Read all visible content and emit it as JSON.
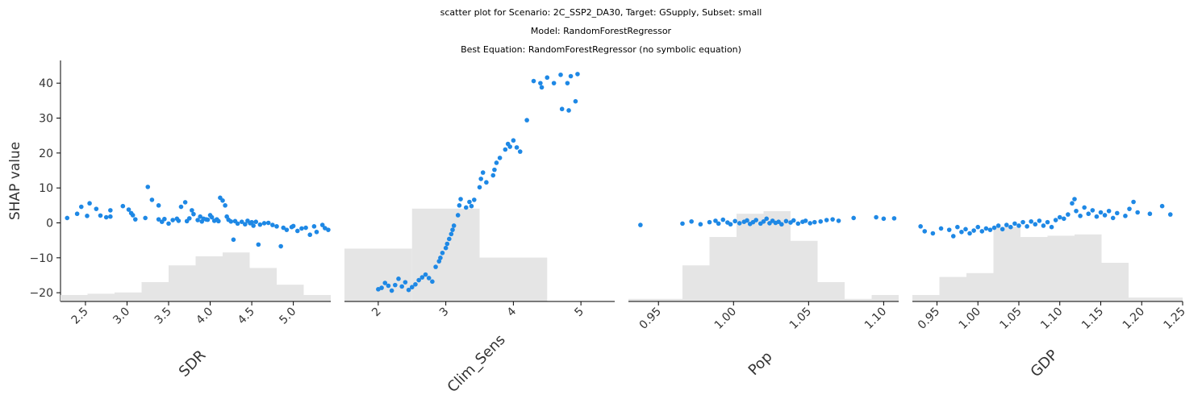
{
  "chart_data": {
    "type": "scatter",
    "title_lines": [
      "scatter plot for Scenario: 2C_SSP2_DA30, Target: GSupply, Subset: small",
      "Model: RandomForestRegressor",
      "Best Equation: RandomForestRegressor (no symbolic equation)"
    ],
    "ylabel": "SHAP value",
    "ylim": [
      -22.5,
      46.5
    ],
    "yticks": [
      -20,
      -10,
      0,
      10,
      20,
      30,
      40
    ],
    "point_color": "#1e88e5",
    "hist_color": "#e5e5e5",
    "panels": [
      {
        "xlabel": "SDR",
        "xlim": [
          2.2,
          5.45
        ],
        "xticks": [
          "2.5",
          "3.0",
          "3.5",
          "4.0",
          "4.5",
          "5.0"
        ],
        "hist": {
          "bins": [
            2.2,
            2.525,
            2.85,
            3.175,
            3.5,
            3.825,
            4.15,
            4.475,
            4.8,
            5.125,
            5.45
          ],
          "heights": [
            0.05,
            0.06,
            0.07,
            0.15,
            0.28,
            0.35,
            0.38,
            0.26,
            0.13,
            0.05
          ]
        },
        "points": [
          [
            2.28,
            1.4
          ],
          [
            2.4,
            2.6
          ],
          [
            2.45,
            4.6
          ],
          [
            2.52,
            2.0
          ],
          [
            2.55,
            5.6
          ],
          [
            2.63,
            4.0
          ],
          [
            2.68,
            2.1
          ],
          [
            2.75,
            1.6
          ],
          [
            2.8,
            3.6
          ],
          [
            2.8,
            1.8
          ],
          [
            2.95,
            4.8
          ],
          [
            3.02,
            3.8
          ],
          [
            3.05,
            2.8
          ],
          [
            3.07,
            2.2
          ],
          [
            3.1,
            1.0
          ],
          [
            3.22,
            1.4
          ],
          [
            3.25,
            10.3
          ],
          [
            3.3,
            6.6
          ],
          [
            3.38,
            5.0
          ],
          [
            3.38,
            1.0
          ],
          [
            3.42,
            0.3
          ],
          [
            3.45,
            1.1
          ],
          [
            3.5,
            -0.2
          ],
          [
            3.55,
            0.8
          ],
          [
            3.6,
            1.2
          ],
          [
            3.62,
            0.6
          ],
          [
            3.65,
            4.6
          ],
          [
            3.7,
            5.9
          ],
          [
            3.72,
            0.5
          ],
          [
            3.75,
            1.3
          ],
          [
            3.78,
            3.6
          ],
          [
            3.8,
            2.5
          ],
          [
            3.85,
            0.8
          ],
          [
            3.88,
            1.8
          ],
          [
            3.9,
            0.4
          ],
          [
            3.92,
            1.2
          ],
          [
            3.95,
            1.0
          ],
          [
            3.97,
            0.9
          ],
          [
            4.0,
            2.2
          ],
          [
            4.02,
            1.6
          ],
          [
            4.05,
            0.6
          ],
          [
            4.08,
            1.0
          ],
          [
            4.1,
            0.5
          ],
          [
            4.12,
            7.2
          ],
          [
            4.15,
            6.4
          ],
          [
            4.18,
            5.0
          ],
          [
            4.2,
            1.8
          ],
          [
            4.22,
            0.9
          ],
          [
            4.25,
            0.4
          ],
          [
            4.28,
            -4.8
          ],
          [
            4.3,
            0.5
          ],
          [
            4.33,
            -0.2
          ],
          [
            4.38,
            0.3
          ],
          [
            4.42,
            -0.4
          ],
          [
            4.45,
            0.6
          ],
          [
            4.48,
            -0.1
          ],
          [
            4.5,
            0.2
          ],
          [
            4.52,
            -0.8
          ],
          [
            4.55,
            0.3
          ],
          [
            4.58,
            -6.2
          ],
          [
            4.6,
            -0.5
          ],
          [
            4.65,
            -0.1
          ],
          [
            4.7,
            0.0
          ],
          [
            4.75,
            -0.6
          ],
          [
            4.8,
            -1.0
          ],
          [
            4.85,
            -6.7
          ],
          [
            4.88,
            -1.4
          ],
          [
            4.92,
            -2.0
          ],
          [
            4.98,
            -1.2
          ],
          [
            5.0,
            -0.9
          ],
          [
            5.05,
            -2.3
          ],
          [
            5.1,
            -1.6
          ],
          [
            5.15,
            -1.4
          ],
          [
            5.2,
            -3.4
          ],
          [
            5.25,
            -1.0
          ],
          [
            5.28,
            -2.6
          ],
          [
            5.35,
            -0.6
          ],
          [
            5.38,
            -1.5
          ],
          [
            5.42,
            -2.0
          ]
        ]
      },
      {
        "xlabel": "Clim_Sens",
        "xlim": [
          1.5,
          5.5
        ],
        "xticks": [
          "2",
          "3",
          "4",
          "5"
        ],
        "hist": {
          "bins": [
            1.5,
            2.5,
            3.5,
            4.5,
            5.5
          ],
          "heights": [
            0.41,
            0.72,
            0.34,
            0.0
          ]
        },
        "points": [
          [
            2.0,
            -19.0
          ],
          [
            2.05,
            -18.6
          ],
          [
            2.1,
            -17.2
          ],
          [
            2.15,
            -18.0
          ],
          [
            2.2,
            -19.4
          ],
          [
            2.25,
            -17.8
          ],
          [
            2.3,
            -16.0
          ],
          [
            2.35,
            -18.2
          ],
          [
            2.4,
            -17.0
          ],
          [
            2.45,
            -19.2
          ],
          [
            2.5,
            -18.4
          ],
          [
            2.55,
            -17.6
          ],
          [
            2.6,
            -16.4
          ],
          [
            2.65,
            -15.6
          ],
          [
            2.7,
            -14.8
          ],
          [
            2.75,
            -15.8
          ],
          [
            2.8,
            -16.8
          ],
          [
            2.85,
            -12.6
          ],
          [
            2.9,
            -11.0
          ],
          [
            2.92,
            -10.0
          ],
          [
            2.95,
            -8.6
          ],
          [
            3.0,
            -7.2
          ],
          [
            3.02,
            -6.0
          ],
          [
            3.05,
            -4.6
          ],
          [
            3.08,
            -3.2
          ],
          [
            3.1,
            -2.0
          ],
          [
            3.12,
            -0.8
          ],
          [
            3.18,
            2.2
          ],
          [
            3.2,
            5.0
          ],
          [
            3.22,
            6.8
          ],
          [
            3.3,
            4.4
          ],
          [
            3.35,
            6.0
          ],
          [
            3.38,
            4.8
          ],
          [
            3.42,
            6.6
          ],
          [
            3.5,
            10.2
          ],
          [
            3.52,
            12.6
          ],
          [
            3.55,
            14.4
          ],
          [
            3.6,
            11.6
          ],
          [
            3.7,
            13.6
          ],
          [
            3.72,
            15.2
          ],
          [
            3.75,
            17.2
          ],
          [
            3.8,
            18.6
          ],
          [
            3.88,
            21.0
          ],
          [
            3.92,
            22.6
          ],
          [
            3.95,
            21.8
          ],
          [
            4.0,
            23.6
          ],
          [
            4.05,
            21.6
          ],
          [
            4.1,
            20.4
          ],
          [
            4.2,
            29.4
          ],
          [
            4.3,
            40.6
          ],
          [
            4.4,
            40.0
          ],
          [
            4.42,
            38.8
          ],
          [
            4.5,
            41.6
          ],
          [
            4.6,
            40.0
          ],
          [
            4.7,
            42.4
          ],
          [
            4.72,
            32.6
          ],
          [
            4.8,
            40.0
          ],
          [
            4.82,
            32.2
          ],
          [
            4.85,
            42.0
          ],
          [
            4.92,
            34.8
          ],
          [
            4.95,
            42.6
          ]
        ]
      },
      {
        "xlabel": "Pop",
        "xlim": [
          0.93,
          1.11
        ],
        "xticks": [
          "0.95",
          "1.00",
          "1.05",
          "1.10"
        ],
        "hist": {
          "bins": [
            0.93,
            0.948,
            0.966,
            0.984,
            1.002,
            1.02,
            1.038,
            1.056,
            1.074,
            1.092,
            1.11
          ],
          "heights": [
            0.02,
            0.02,
            0.28,
            0.5,
            0.68,
            0.7,
            0.47,
            0.15,
            0.02,
            0.05
          ]
        },
        "points": [
          [
            0.938,
            -0.6
          ],
          [
            0.966,
            -0.2
          ],
          [
            0.972,
            0.4
          ],
          [
            0.978,
            -0.4
          ],
          [
            0.984,
            0.2
          ],
          [
            0.988,
            0.6
          ],
          [
            0.99,
            -0.2
          ],
          [
            0.993,
            0.9
          ],
          [
            0.996,
            0.1
          ],
          [
            0.998,
            -0.4
          ],
          [
            1.001,
            0.5
          ],
          [
            1.004,
            -0.1
          ],
          [
            1.007,
            0.3
          ],
          [
            1.009,
            0.7
          ],
          [
            1.011,
            -0.3
          ],
          [
            1.013,
            0.2
          ],
          [
            1.015,
            0.8
          ],
          [
            1.018,
            -0.2
          ],
          [
            1.02,
            0.4
          ],
          [
            1.022,
            1.2
          ],
          [
            1.024,
            -0.1
          ],
          [
            1.026,
            0.6
          ],
          [
            1.028,
            0.0
          ],
          [
            1.03,
            0.3
          ],
          [
            1.032,
            -0.4
          ],
          [
            1.035,
            0.5
          ],
          [
            1.038,
            0.1
          ],
          [
            1.04,
            0.7
          ],
          [
            1.043,
            -0.2
          ],
          [
            1.046,
            0.3
          ],
          [
            1.048,
            0.6
          ],
          [
            1.051,
            -0.1
          ],
          [
            1.054,
            0.2
          ],
          [
            1.058,
            0.4
          ],
          [
            1.062,
            0.8
          ],
          [
            1.066,
            1.0
          ],
          [
            1.07,
            0.6
          ],
          [
            1.08,
            1.4
          ],
          [
            1.095,
            1.6
          ],
          [
            1.1,
            1.2
          ],
          [
            1.107,
            1.3
          ]
        ]
      },
      {
        "xlabel": "GDP",
        "xlim": [
          0.92,
          1.25
        ],
        "xticks": [
          "0.95",
          "1.00",
          "1.05",
          "1.10",
          "1.15",
          "1.20",
          "1.25"
        ],
        "hist": {
          "bins": [
            0.92,
            0.953,
            0.986,
            1.019,
            1.052,
            1.085,
            1.118,
            1.151,
            1.184,
            1.217,
            1.25
          ],
          "heights": [
            0.05,
            0.19,
            0.22,
            0.58,
            0.5,
            0.51,
            0.52,
            0.3,
            0.03,
            0.03
          ]
        },
        "points": [
          [
            0.93,
            -1.0
          ],
          [
            0.935,
            -2.4
          ],
          [
            0.945,
            -3.0
          ],
          [
            0.955,
            -1.6
          ],
          [
            0.965,
            -2.0
          ],
          [
            0.97,
            -3.8
          ],
          [
            0.975,
            -1.2
          ],
          [
            0.98,
            -2.6
          ],
          [
            0.985,
            -1.8
          ],
          [
            0.99,
            -3.0
          ],
          [
            0.995,
            -2.2
          ],
          [
            1.0,
            -1.2
          ],
          [
            1.005,
            -2.4
          ],
          [
            1.01,
            -1.6
          ],
          [
            1.015,
            -2.0
          ],
          [
            1.02,
            -1.4
          ],
          [
            1.025,
            -0.8
          ],
          [
            1.03,
            -1.8
          ],
          [
            1.035,
            -0.6
          ],
          [
            1.04,
            -1.2
          ],
          [
            1.045,
            -0.2
          ],
          [
            1.05,
            -0.8
          ],
          [
            1.055,
            0.2
          ],
          [
            1.06,
            -1.0
          ],
          [
            1.065,
            0.4
          ],
          [
            1.07,
            -0.4
          ],
          [
            1.075,
            0.6
          ],
          [
            1.08,
            -0.8
          ],
          [
            1.085,
            0.2
          ],
          [
            1.09,
            -1.2
          ],
          [
            1.095,
            0.8
          ],
          [
            1.1,
            1.6
          ],
          [
            1.105,
            1.2
          ],
          [
            1.11,
            2.4
          ],
          [
            1.115,
            5.6
          ],
          [
            1.118,
            6.8
          ],
          [
            1.12,
            3.4
          ],
          [
            1.125,
            2.0
          ],
          [
            1.13,
            4.4
          ],
          [
            1.135,
            2.6
          ],
          [
            1.14,
            3.6
          ],
          [
            1.145,
            1.8
          ],
          [
            1.15,
            3.0
          ],
          [
            1.155,
            2.2
          ],
          [
            1.16,
            3.4
          ],
          [
            1.165,
            1.4
          ],
          [
            1.17,
            2.8
          ],
          [
            1.18,
            2.0
          ],
          [
            1.185,
            4.0
          ],
          [
            1.19,
            6.0
          ],
          [
            1.195,
            3.0
          ],
          [
            1.21,
            2.6
          ],
          [
            1.225,
            4.8
          ],
          [
            1.235,
            2.4
          ]
        ]
      }
    ]
  }
}
